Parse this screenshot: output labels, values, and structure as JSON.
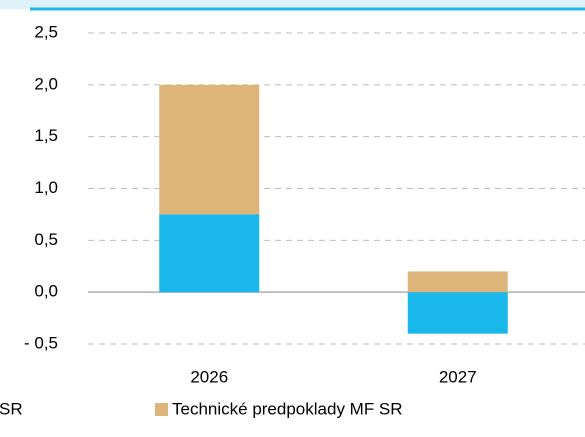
{
  "chart_data": {
    "type": "stacked_bar",
    "categories": [
      "2026",
      "2027"
    ],
    "series": [
      {
        "name": "SR",
        "color": "#1ab7ea",
        "values": [
          0.75,
          -0.4
        ]
      },
      {
        "name": "Technické predpoklady MF SR",
        "color": "#ddb57a",
        "values": [
          1.25,
          0.2
        ]
      }
    ],
    "ylim": [
      -0.5,
      2.5
    ],
    "yticks": [
      {
        "value": -0.5,
        "label": "- 0,5"
      },
      {
        "value": 0,
        "label": "0,0"
      },
      {
        "value": 0.5,
        "label": "0,5"
      },
      {
        "value": 1,
        "label": "1,0"
      },
      {
        "value": 1.5,
        "label": "1,5"
      },
      {
        "value": 2,
        "label": "2,0"
      },
      {
        "value": 2.5,
        "label": "2,5"
      }
    ],
    "grid": true
  }
}
